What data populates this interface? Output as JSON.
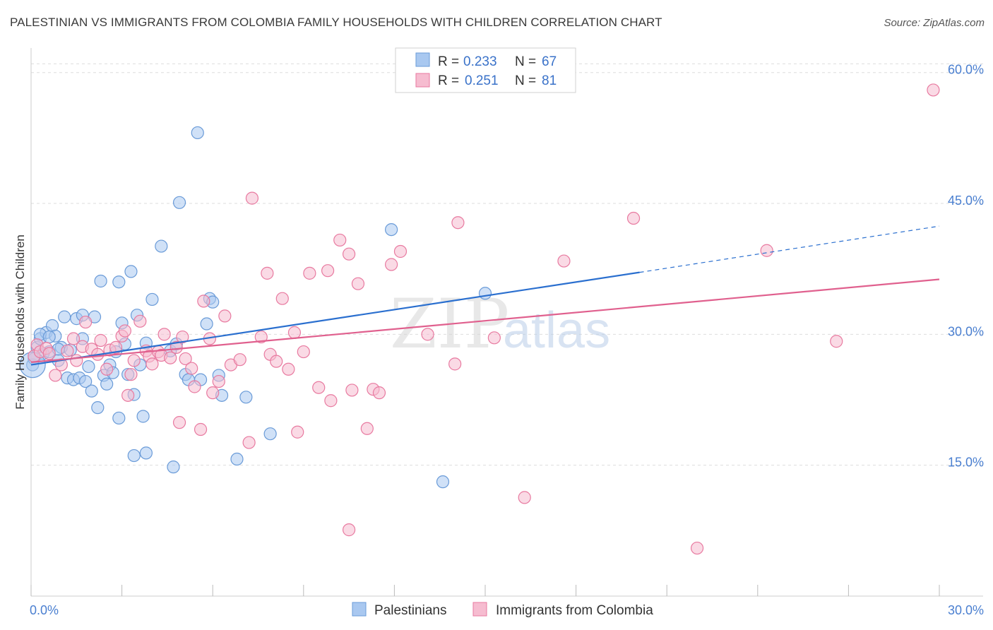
{
  "header": {
    "title": "PALESTINIAN VS IMMIGRANTS FROM COLOMBIA FAMILY HOUSEHOLDS WITH CHILDREN CORRELATION CHART",
    "source": "Source: ZipAtlas.com"
  },
  "watermark": {
    "zip": "ZIP",
    "atlas": "atlas"
  },
  "legend": {
    "r_label": "R =",
    "n_label": "N =",
    "rows": [
      {
        "r": "0.233",
        "n": "67"
      },
      {
        "r": "0.251",
        "n": "81"
      }
    ]
  },
  "colors": {
    "blue_fill": "#a9c8f0",
    "blue_stroke": "#6a9bd8",
    "blue_line": "#2a6fcf",
    "pink_fill": "#f6bcd0",
    "pink_stroke": "#e87aa0",
    "pink_line": "#e0608e",
    "grid": "#dddddd",
    "axis_label": "#4a7fd0"
  },
  "chart_data": {
    "type": "scatter",
    "title": "PALESTINIAN VS IMMIGRANTS FROM COLOMBIA FAMILY HOUSEHOLDS WITH CHILDREN CORRELATION CHART",
    "xlabel": "",
    "ylabel": "Family Households with Children",
    "xlim": [
      0,
      30
    ],
    "ylim": [
      0,
      62
    ],
    "x_tick_labels": [
      "0.0%",
      "30.0%"
    ],
    "y_ticks": [
      15,
      30,
      45,
      60
    ],
    "y_tick_labels": [
      "15.0%",
      "30.0%",
      "45.0%",
      "60.0%"
    ],
    "grid": true,
    "legend_position": "bottom",
    "series": [
      {
        "name": "Palestinians",
        "r": 0.233,
        "n": 67,
        "trend": {
          "x0": 0,
          "y0": 26.5,
          "x1": 20.1,
          "y1": 37.1,
          "dashed_to_x": 30,
          "dashed_to_y": 42.4
        },
        "points": [
          [
            0.05,
            26.5
          ],
          [
            0.1,
            27.2
          ],
          [
            0.2,
            28.5
          ],
          [
            0.3,
            29.5
          ],
          [
            0.4,
            27.8
          ],
          [
            0.5,
            30.2
          ],
          [
            0.6,
            28.0
          ],
          [
            0.7,
            31.0
          ],
          [
            0.8,
            29.8
          ],
          [
            0.9,
            27.0
          ],
          [
            1.0,
            28.5
          ],
          [
            1.1,
            32.0
          ],
          [
            1.2,
            25.0
          ],
          [
            1.3,
            28.2
          ],
          [
            1.4,
            24.8
          ],
          [
            1.5,
            31.8
          ],
          [
            1.6,
            25.0
          ],
          [
            1.7,
            29.5
          ],
          [
            1.8,
            24.6
          ],
          [
            1.9,
            26.3
          ],
          [
            2.0,
            23.5
          ],
          [
            2.1,
            32.0
          ],
          [
            2.2,
            21.6
          ],
          [
            2.3,
            36.1
          ],
          [
            2.4,
            25.3
          ],
          [
            2.5,
            24.3
          ],
          [
            2.6,
            26.5
          ],
          [
            2.7,
            25.6
          ],
          [
            2.8,
            28.0
          ],
          [
            2.9,
            20.4
          ],
          [
            2.9,
            36.0
          ],
          [
            3.0,
            31.3
          ],
          [
            3.1,
            28.9
          ],
          [
            3.2,
            25.4
          ],
          [
            3.3,
            37.2
          ],
          [
            3.4,
            23.1
          ],
          [
            3.4,
            16.1
          ],
          [
            3.5,
            32.2
          ],
          [
            3.6,
            26.5
          ],
          [
            3.7,
            20.6
          ],
          [
            3.8,
            29.0
          ],
          [
            3.8,
            16.4
          ],
          [
            4.0,
            34.0
          ],
          [
            4.3,
            40.1
          ],
          [
            4.6,
            28.1
          ],
          [
            4.7,
            14.8
          ],
          [
            4.8,
            28.9
          ],
          [
            4.9,
            45.1
          ],
          [
            5.1,
            25.4
          ],
          [
            5.2,
            24.8
          ],
          [
            5.5,
            53.1
          ],
          [
            5.6,
            24.8
          ],
          [
            5.8,
            31.2
          ],
          [
            5.9,
            34.1
          ],
          [
            6.0,
            33.7
          ],
          [
            6.2,
            25.3
          ],
          [
            6.3,
            23.0
          ],
          [
            6.8,
            15.7
          ],
          [
            7.1,
            22.8
          ],
          [
            7.9,
            18.6
          ],
          [
            11.9,
            42.0
          ],
          [
            13.6,
            13.1
          ],
          [
            15.0,
            34.7
          ],
          [
            0.3,
            30.0
          ],
          [
            0.9,
            28.3
          ],
          [
            1.7,
            32.2
          ],
          [
            0.6,
            29.7
          ]
        ]
      },
      {
        "name": "Immigrants from Colombia",
        "r": 0.251,
        "n": 81,
        "trend": {
          "x0": 0,
          "y0": 26.8,
          "x1": 30,
          "y1": 36.3
        },
        "points": [
          [
            0.1,
            27.5
          ],
          [
            0.2,
            28.8
          ],
          [
            0.3,
            28.0
          ],
          [
            0.5,
            28.4
          ],
          [
            0.6,
            27.8
          ],
          [
            0.8,
            25.3
          ],
          [
            1.0,
            26.5
          ],
          [
            1.2,
            28.1
          ],
          [
            1.4,
            29.5
          ],
          [
            1.5,
            27.0
          ],
          [
            1.7,
            28.6
          ],
          [
            1.8,
            31.4
          ],
          [
            2.0,
            28.3
          ],
          [
            2.2,
            27.7
          ],
          [
            2.3,
            29.3
          ],
          [
            2.5,
            26.0
          ],
          [
            2.6,
            28.2
          ],
          [
            2.8,
            28.5
          ],
          [
            3.0,
            29.8
          ],
          [
            3.1,
            30.4
          ],
          [
            3.2,
            23.0
          ],
          [
            3.3,
            25.4
          ],
          [
            3.4,
            27.0
          ],
          [
            3.6,
            31.5
          ],
          [
            3.8,
            28.1
          ],
          [
            3.9,
            27.5
          ],
          [
            4.0,
            26.6
          ],
          [
            4.2,
            28.0
          ],
          [
            4.3,
            27.6
          ],
          [
            4.4,
            30.0
          ],
          [
            4.6,
            27.3
          ],
          [
            4.8,
            28.5
          ],
          [
            4.9,
            19.9
          ],
          [
            5.0,
            29.7
          ],
          [
            5.1,
            27.2
          ],
          [
            5.3,
            26.1
          ],
          [
            5.4,
            24.0
          ],
          [
            5.6,
            19.1
          ],
          [
            5.7,
            33.8
          ],
          [
            5.9,
            29.5
          ],
          [
            6.0,
            23.3
          ],
          [
            6.2,
            24.6
          ],
          [
            6.4,
            32.1
          ],
          [
            6.6,
            26.5
          ],
          [
            6.9,
            27.1
          ],
          [
            7.2,
            17.6
          ],
          [
            7.3,
            45.6
          ],
          [
            7.6,
            29.7
          ],
          [
            7.8,
            37.0
          ],
          [
            7.9,
            27.7
          ],
          [
            8.1,
            26.9
          ],
          [
            8.3,
            34.1
          ],
          [
            8.5,
            26.0
          ],
          [
            8.8,
            18.8
          ],
          [
            9.0,
            28.0
          ],
          [
            9.2,
            37.0
          ],
          [
            9.5,
            23.9
          ],
          [
            9.8,
            37.3
          ],
          [
            9.9,
            22.4
          ],
          [
            10.2,
            40.8
          ],
          [
            10.5,
            39.2
          ],
          [
            10.6,
            23.6
          ],
          [
            10.8,
            35.8
          ],
          [
            11.1,
            19.2
          ],
          [
            11.3,
            23.7
          ],
          [
            11.5,
            23.3
          ],
          [
            11.9,
            38.0
          ],
          [
            12.2,
            39.5
          ],
          [
            13.1,
            30.0
          ],
          [
            14.0,
            26.6
          ],
          [
            14.1,
            42.8
          ],
          [
            15.3,
            29.6
          ],
          [
            16.3,
            11.3
          ],
          [
            17.6,
            38.4
          ],
          [
            19.9,
            43.3
          ],
          [
            22.0,
            5.5
          ],
          [
            24.3,
            39.6
          ],
          [
            26.6,
            29.2
          ],
          [
            29.8,
            58.0
          ],
          [
            10.5,
            7.6
          ],
          [
            8.7,
            30.2
          ]
        ]
      }
    ]
  },
  "bottom_legend": {
    "items": [
      {
        "label": "Palestinians"
      },
      {
        "label": "Immigrants from Colombia"
      }
    ]
  }
}
